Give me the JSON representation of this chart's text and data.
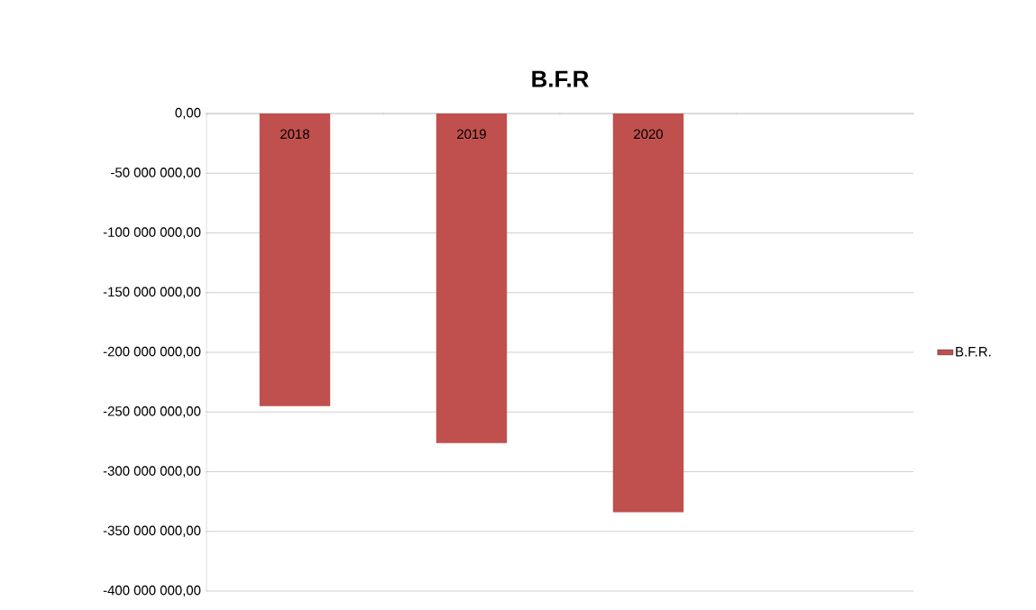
{
  "chart_data": {
    "type": "bar",
    "title": "B.F.R",
    "categories": [
      "2018",
      "2019",
      "2020",
      null
    ],
    "series": [
      {
        "name": "B.F.R.",
        "color": "#c0504d",
        "values": [
          -245000000,
          -276000000,
          -334000000,
          null
        ]
      }
    ],
    "ylim": [
      -400000000,
      0
    ],
    "yticks": [
      {
        "value": -400000000,
        "label": "-400 000 000,00"
      },
      {
        "value": -350000000,
        "label": "-350 000 000,00"
      },
      {
        "value": -300000000,
        "label": "-300 000 000,00"
      },
      {
        "value": -250000000,
        "label": "-250 000 000,00"
      },
      {
        "value": -200000000,
        "label": "-200 000 000,00"
      },
      {
        "value": -150000000,
        "label": "-150 000 000,00"
      },
      {
        "value": -100000000,
        "label": "-100 000 000,00"
      },
      {
        "value": -50000000,
        "label": "-50 000 000,00"
      },
      {
        "value": 0,
        "label": "0,00"
      }
    ],
    "grid": "y",
    "legend": "right"
  }
}
